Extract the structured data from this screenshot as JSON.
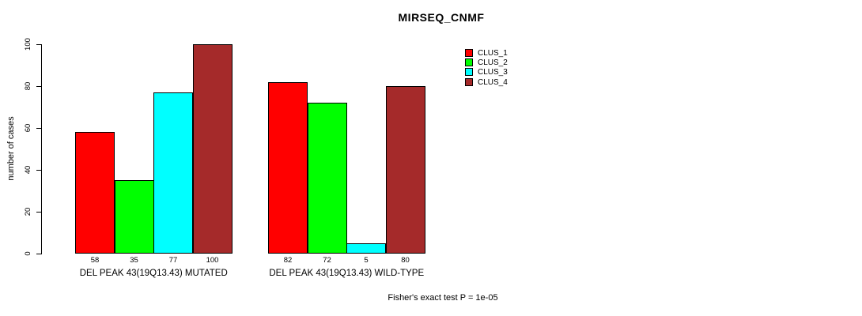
{
  "chart_data": {
    "type": "bar",
    "title": "MIRSEQ_CNMF",
    "ylabel": "number of cases",
    "ylim": [
      0,
      100
    ],
    "yticks": [
      0,
      20,
      40,
      60,
      80,
      100
    ],
    "grid": false,
    "legend_position": "top-right",
    "categories": [
      "DEL PEAK 43(19Q13.43) MUTATED",
      "DEL PEAK 43(19Q13.43) WILD-TYPE"
    ],
    "series": [
      {
        "name": "CLUS_1",
        "color": "#FF0000",
        "values": [
          58,
          82
        ]
      },
      {
        "name": "CLUS_2",
        "color": "#00FF00",
        "values": [
          35,
          72
        ]
      },
      {
        "name": "CLUS_3",
        "color": "#00FFFF",
        "values": [
          77,
          5
        ]
      },
      {
        "name": "CLUS_4",
        "color": "#A52A2A",
        "values": [
          100,
          80
        ]
      }
    ],
    "bar_value_labels": [
      [
        58,
        35,
        77,
        100
      ],
      [
        82,
        72,
        5,
        80
      ]
    ],
    "annotation": "Fisher's exact test P = 1e-05"
  }
}
